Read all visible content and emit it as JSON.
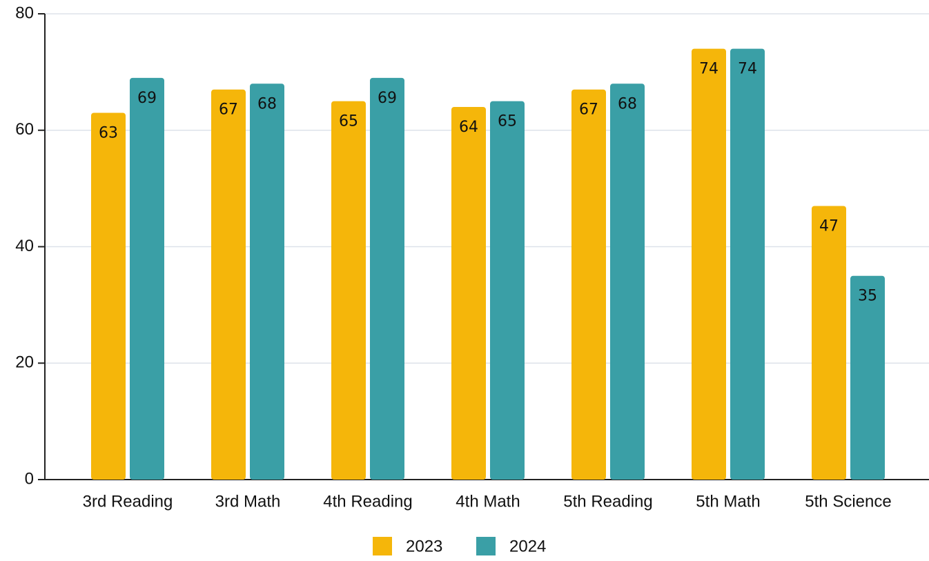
{
  "chart_data": {
    "type": "bar",
    "categories": [
      "3rd Reading",
      "3rd Math",
      "4th Reading",
      "4th Math",
      "5th Reading",
      "5th Math",
      "5th Science"
    ],
    "series": [
      {
        "name": "2023",
        "color": "#f5b60a",
        "values": [
          63,
          67,
          65,
          64,
          67,
          74,
          47
        ]
      },
      {
        "name": "2024",
        "color": "#3a9fa6",
        "values": [
          69,
          68,
          69,
          65,
          68,
          74,
          35
        ]
      }
    ],
    "ylim": [
      0,
      80
    ],
    "yticks": [
      0,
      20,
      40,
      60,
      80
    ],
    "grid": true,
    "legend": "bottom"
  }
}
